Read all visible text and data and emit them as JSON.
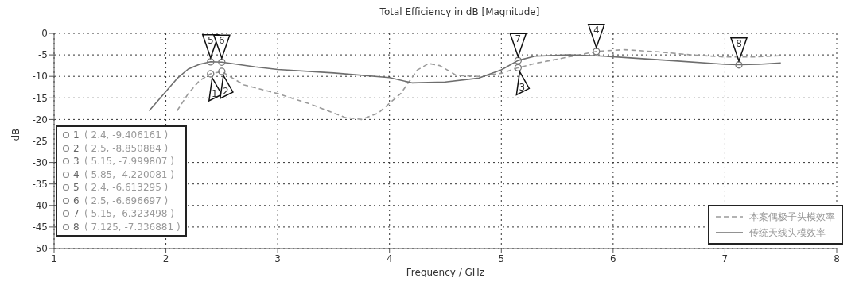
{
  "chart_data": {
    "type": "line",
    "title": "Total Efficiency in dB [Magnitude]",
    "xlabel": "Frequency / GHz",
    "ylabel": "dB",
    "xlim": [
      1,
      8
    ],
    "xticks": [
      1,
      2,
      3,
      4,
      5,
      6,
      7,
      8
    ],
    "ylim": [
      -50,
      0
    ],
    "yticks": [
      0,
      -5,
      -10,
      -15,
      -20,
      -25,
      -30,
      -35,
      -40,
      -45,
      -50
    ],
    "grid": true,
    "legend": "bottom right",
    "marker": "none",
    "series": [
      {
        "name": "本案偶极子头模效率",
        "color": "#9a9a9a",
        "line_style": "dashed",
        "x": [
          2.1,
          2.2,
          2.3,
          2.4,
          2.5,
          2.7,
          3.0,
          3.3,
          3.6,
          3.75,
          3.9,
          4.1,
          4.25,
          4.35,
          4.45,
          4.6,
          4.8,
          5.0,
          5.15,
          5.3,
          5.6,
          5.85,
          6.1,
          6.4,
          6.7,
          7.0,
          7.25,
          7.5
        ],
        "values": [
          -18,
          -14,
          -11,
          -9.4,
          -8.9,
          -12,
          -14,
          -16.5,
          -19.5,
          -20,
          -18.5,
          -14,
          -8.5,
          -7,
          -7.5,
          -9.8,
          -10,
          -9.3,
          -8,
          -7,
          -5.5,
          -4.2,
          -3.8,
          -4.3,
          -5,
          -5.5,
          -5.5,
          -5.2
        ]
      },
      {
        "name": "传统天线头模效率",
        "color": "#6e6e6e",
        "line_style": "solid",
        "x": [
          1.85,
          2.0,
          2.1,
          2.2,
          2.3,
          2.4,
          2.5,
          2.8,
          3.0,
          3.5,
          4.0,
          4.2,
          4.5,
          4.8,
          5.0,
          5.15,
          5.3,
          5.6,
          5.85,
          6.1,
          6.5,
          7.0,
          7.125,
          7.3,
          7.5
        ],
        "values": [
          -18,
          -13.5,
          -10.5,
          -8.3,
          -7.2,
          -6.6,
          -6.7,
          -7.8,
          -8.4,
          -9.2,
          -10.3,
          -11.5,
          -11.3,
          -10.4,
          -8.5,
          -6.3,
          -5.3,
          -5,
          -5.2,
          -5.6,
          -6.3,
          -7.2,
          -7.3,
          -7.2,
          -6.9
        ]
      }
    ],
    "annotations": [
      {
        "text": "1",
        "x": 2.4,
        "y": -9.406161
      },
      {
        "text": "2",
        "x": 2.5,
        "y": -8.850884
      },
      {
        "text": "3",
        "x": 5.15,
        "y": -7.999807
      },
      {
        "text": "4",
        "x": 5.85,
        "y": -4.220081
      },
      {
        "text": "5",
        "x": 2.4,
        "y": -6.613295
      },
      {
        "text": "6",
        "x": 2.5,
        "y": -6.696697
      },
      {
        "text": "7",
        "x": 5.15,
        "y": -6.323498
      },
      {
        "text": "8",
        "x": 7.125,
        "y": -7.336881
      },
      "( 2.4, -9.406161 )",
      "( 2.5, -8.850884 )",
      "( 5.15, -7.999807 )",
      "( 5.85, -4.220081 )",
      "( 2.4, -6.613295 )",
      "( 2.5, -6.696697 )",
      "( 5.15, -6.323498 )",
      "( 7.125, -7.336881 )"
    ]
  }
}
